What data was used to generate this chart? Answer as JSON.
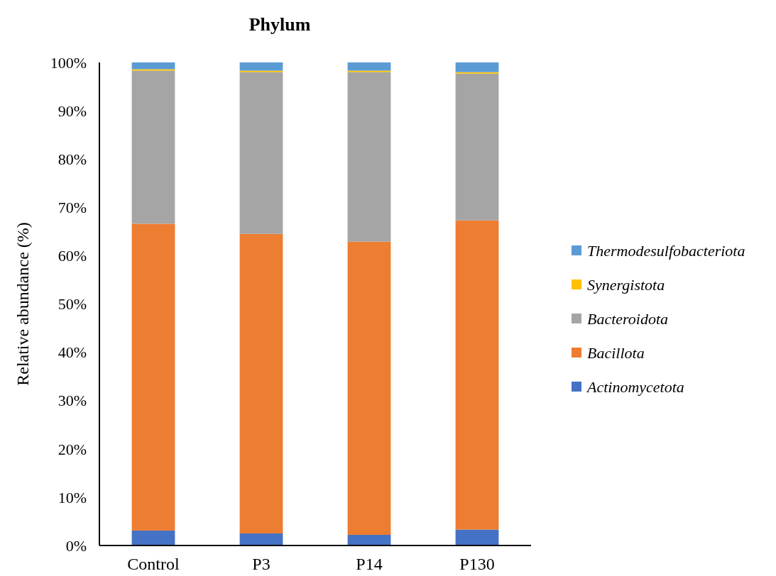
{
  "chart_data": {
    "type": "bar",
    "title": "Phylum",
    "ylabel": "Relative abundance (%)",
    "categories": [
      "Control",
      "P3",
      "P14",
      "P130"
    ],
    "stacked": true,
    "legend": "right",
    "grid": false,
    "ylim": [
      0,
      100
    ],
    "yticks": [
      {
        "value": 0,
        "label": "0%"
      },
      {
        "value": 10,
        "label": "10%"
      },
      {
        "value": 20,
        "label": "20%"
      },
      {
        "value": 30,
        "label": "30%"
      },
      {
        "value": 40,
        "label": "40%"
      },
      {
        "value": 50,
        "label": "50%"
      },
      {
        "value": 60,
        "label": "60%"
      },
      {
        "value": 70,
        "label": "70%"
      },
      {
        "value": 80,
        "label": "80%"
      },
      {
        "value": 90,
        "label": "90%"
      },
      {
        "value": 100,
        "label": "100%"
      }
    ],
    "series": [
      {
        "name": "Actinomycetota",
        "color": "#4472c4",
        "values": [
          3.1,
          2.5,
          2.2,
          3.3
        ]
      },
      {
        "name": "Bacillota",
        "color": "#ed7d31",
        "values": [
          63.5,
          62.0,
          60.7,
          64.0
        ]
      },
      {
        "name": "Bacteroidota",
        "color": "#a5a5a5",
        "values": [
          31.7,
          33.5,
          35.1,
          30.4
        ]
      },
      {
        "name": "Synergistota",
        "color": "#ffc000",
        "values": [
          0.3,
          0.3,
          0.3,
          0.3
        ]
      },
      {
        "name": "Thermodesulfobacteriota",
        "color": "#5b9bd5",
        "values": [
          1.4,
          1.7,
          1.7,
          2.0
        ]
      }
    ]
  }
}
